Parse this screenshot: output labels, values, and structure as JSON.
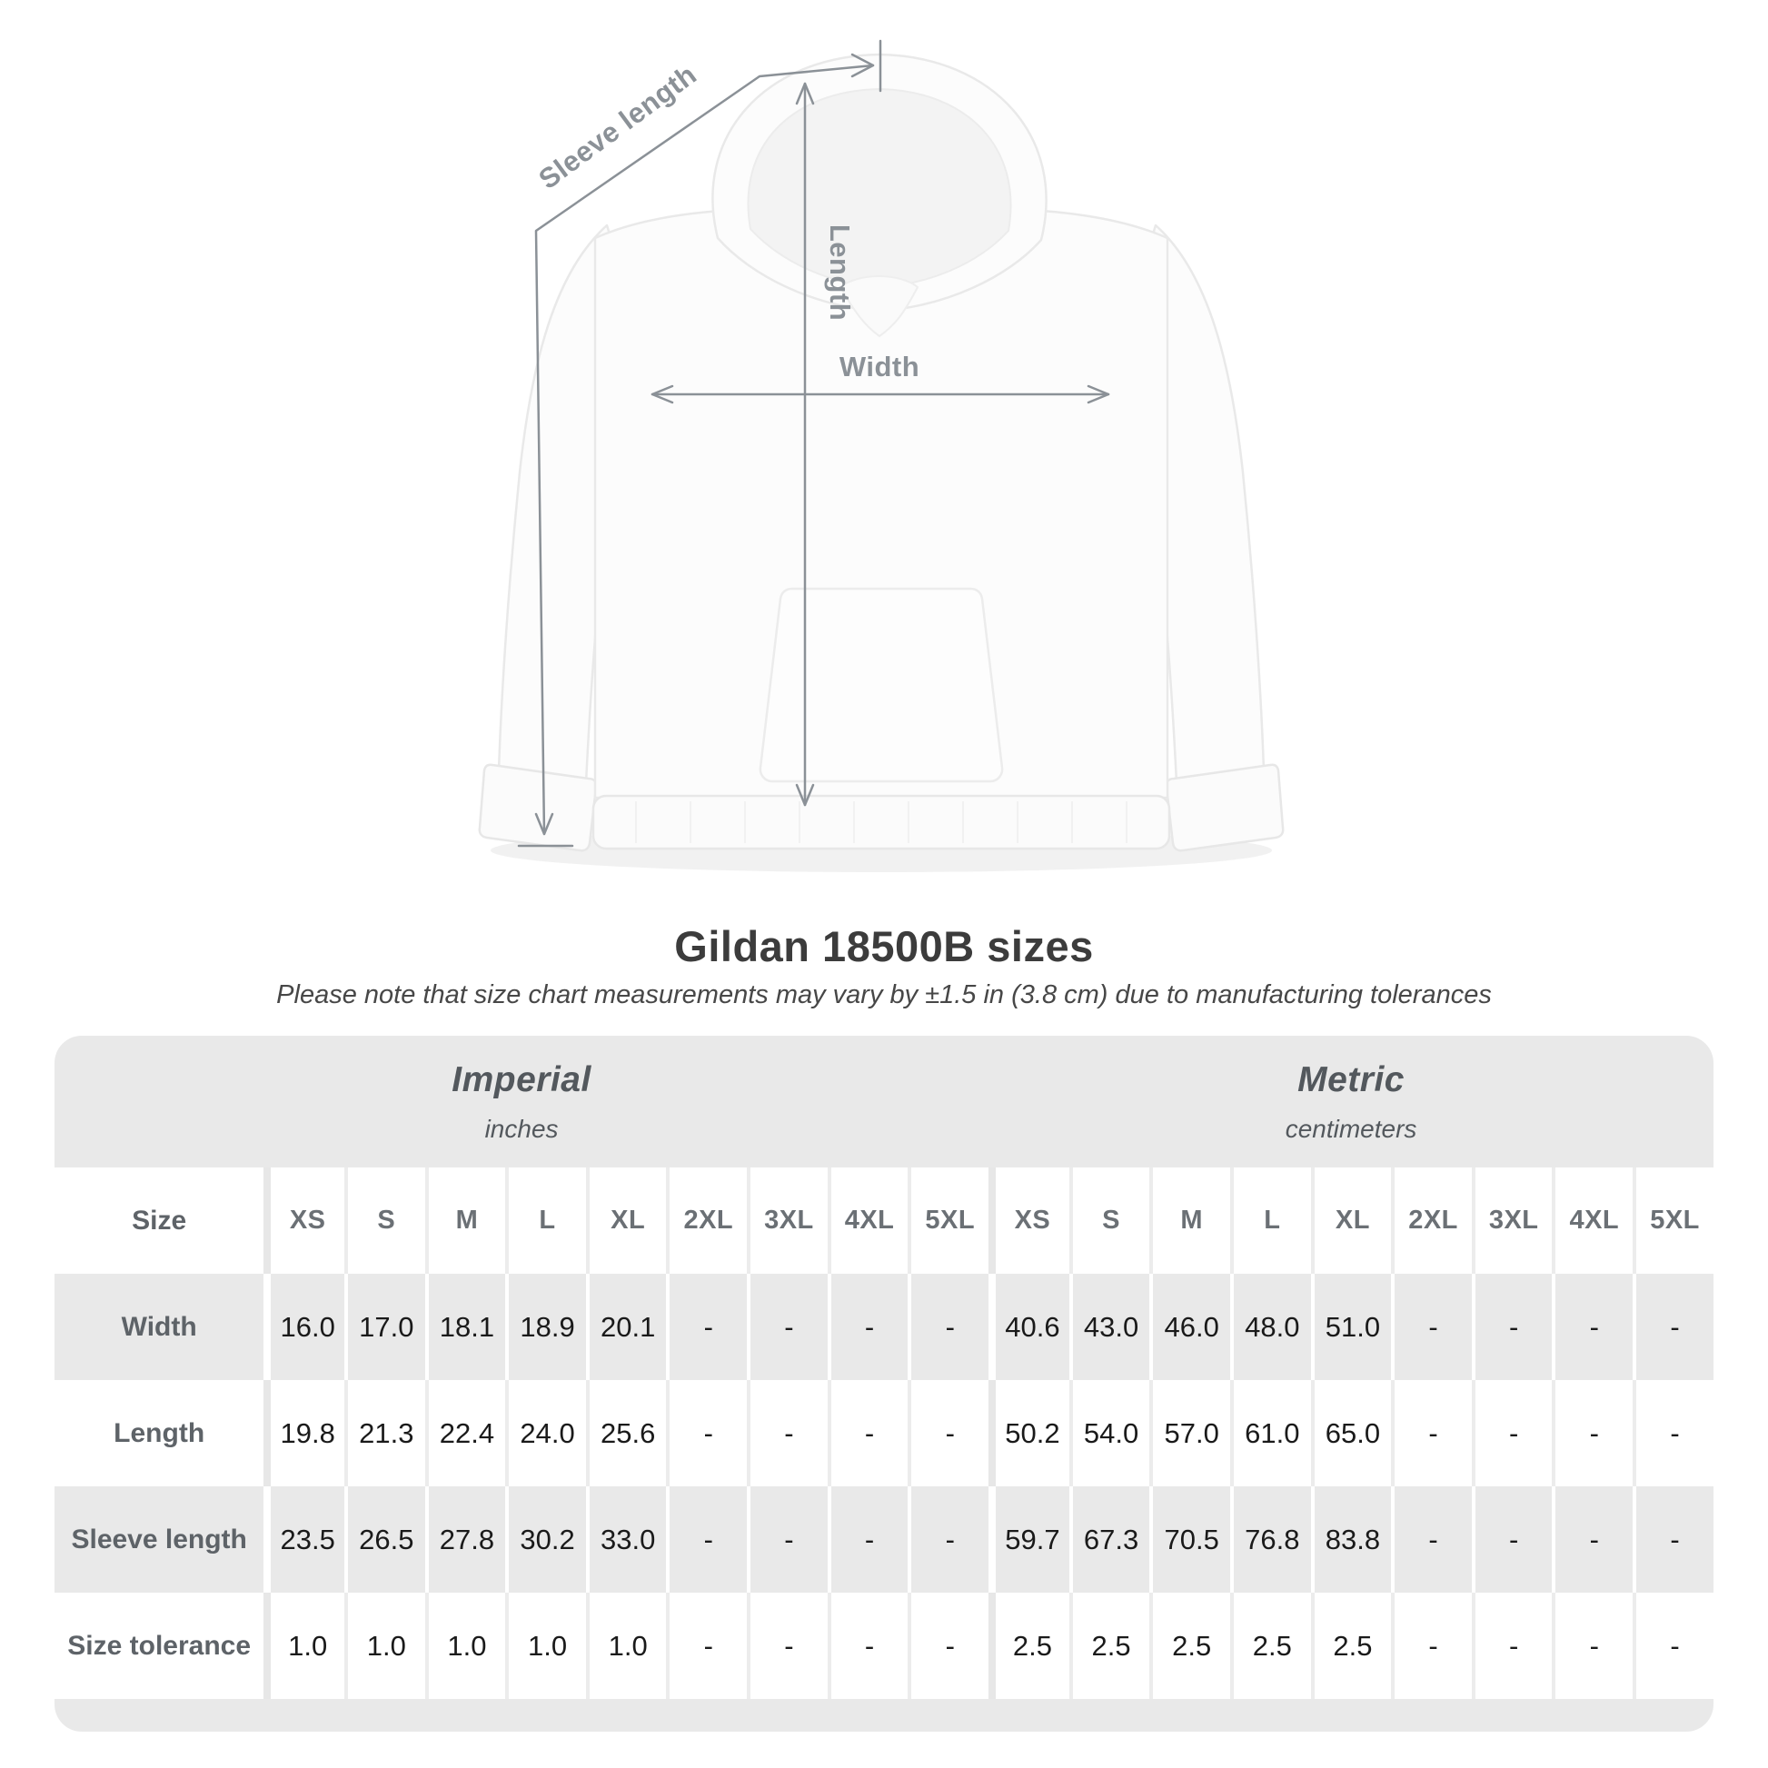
{
  "figure": {
    "sleeve_length_label": "Sleeve length",
    "length_label": "Length",
    "width_label": "Width"
  },
  "title": "Gildan 18500B sizes",
  "subtitle": "Please note that size chart measurements may vary by ±1.5 in (3.8 cm) due to manufacturing tolerances",
  "table": {
    "groups": [
      {
        "label": "Imperial",
        "sublabel": "inches"
      },
      {
        "label": "Metric",
        "sublabel": "centimeters"
      }
    ],
    "size_header": "Size",
    "columns": [
      "XS",
      "S",
      "M",
      "L",
      "XL",
      "2XL",
      "3XL",
      "4XL",
      "5XL"
    ],
    "rows": [
      {
        "label": "Width",
        "imperial": [
          "16.0",
          "17.0",
          "18.1",
          "18.9",
          "20.1",
          "-",
          "-",
          "-",
          "-"
        ],
        "metric": [
          "40.6",
          "43.0",
          "46.0",
          "48.0",
          "51.0",
          "-",
          "-",
          "-",
          "-"
        ]
      },
      {
        "label": "Length",
        "imperial": [
          "19.8",
          "21.3",
          "22.4",
          "24.0",
          "25.6",
          "-",
          "-",
          "-",
          "-"
        ],
        "metric": [
          "50.2",
          "54.0",
          "57.0",
          "61.0",
          "65.0",
          "-",
          "-",
          "-",
          "-"
        ]
      },
      {
        "label": "Sleeve length",
        "imperial": [
          "23.5",
          "26.5",
          "27.8",
          "30.2",
          "33.0",
          "-",
          "-",
          "-",
          "-"
        ],
        "metric": [
          "59.7",
          "67.3",
          "70.5",
          "76.8",
          "83.8",
          "-",
          "-",
          "-",
          "-"
        ]
      },
      {
        "label": "Size tolerance",
        "imperial": [
          "1.0",
          "1.0",
          "1.0",
          "1.0",
          "1.0",
          "-",
          "-",
          "-",
          "-"
        ],
        "metric": [
          "2.5",
          "2.5",
          "2.5",
          "2.5",
          "2.5",
          "-",
          "-",
          "-",
          "-"
        ]
      }
    ]
  },
  "colors": {
    "table_band": "#e9e9e9",
    "annotation_gray": "#8b9197",
    "title_text": "#3c3c3c",
    "value_text": "#1a1a1a",
    "label_text": "#5e6368"
  }
}
